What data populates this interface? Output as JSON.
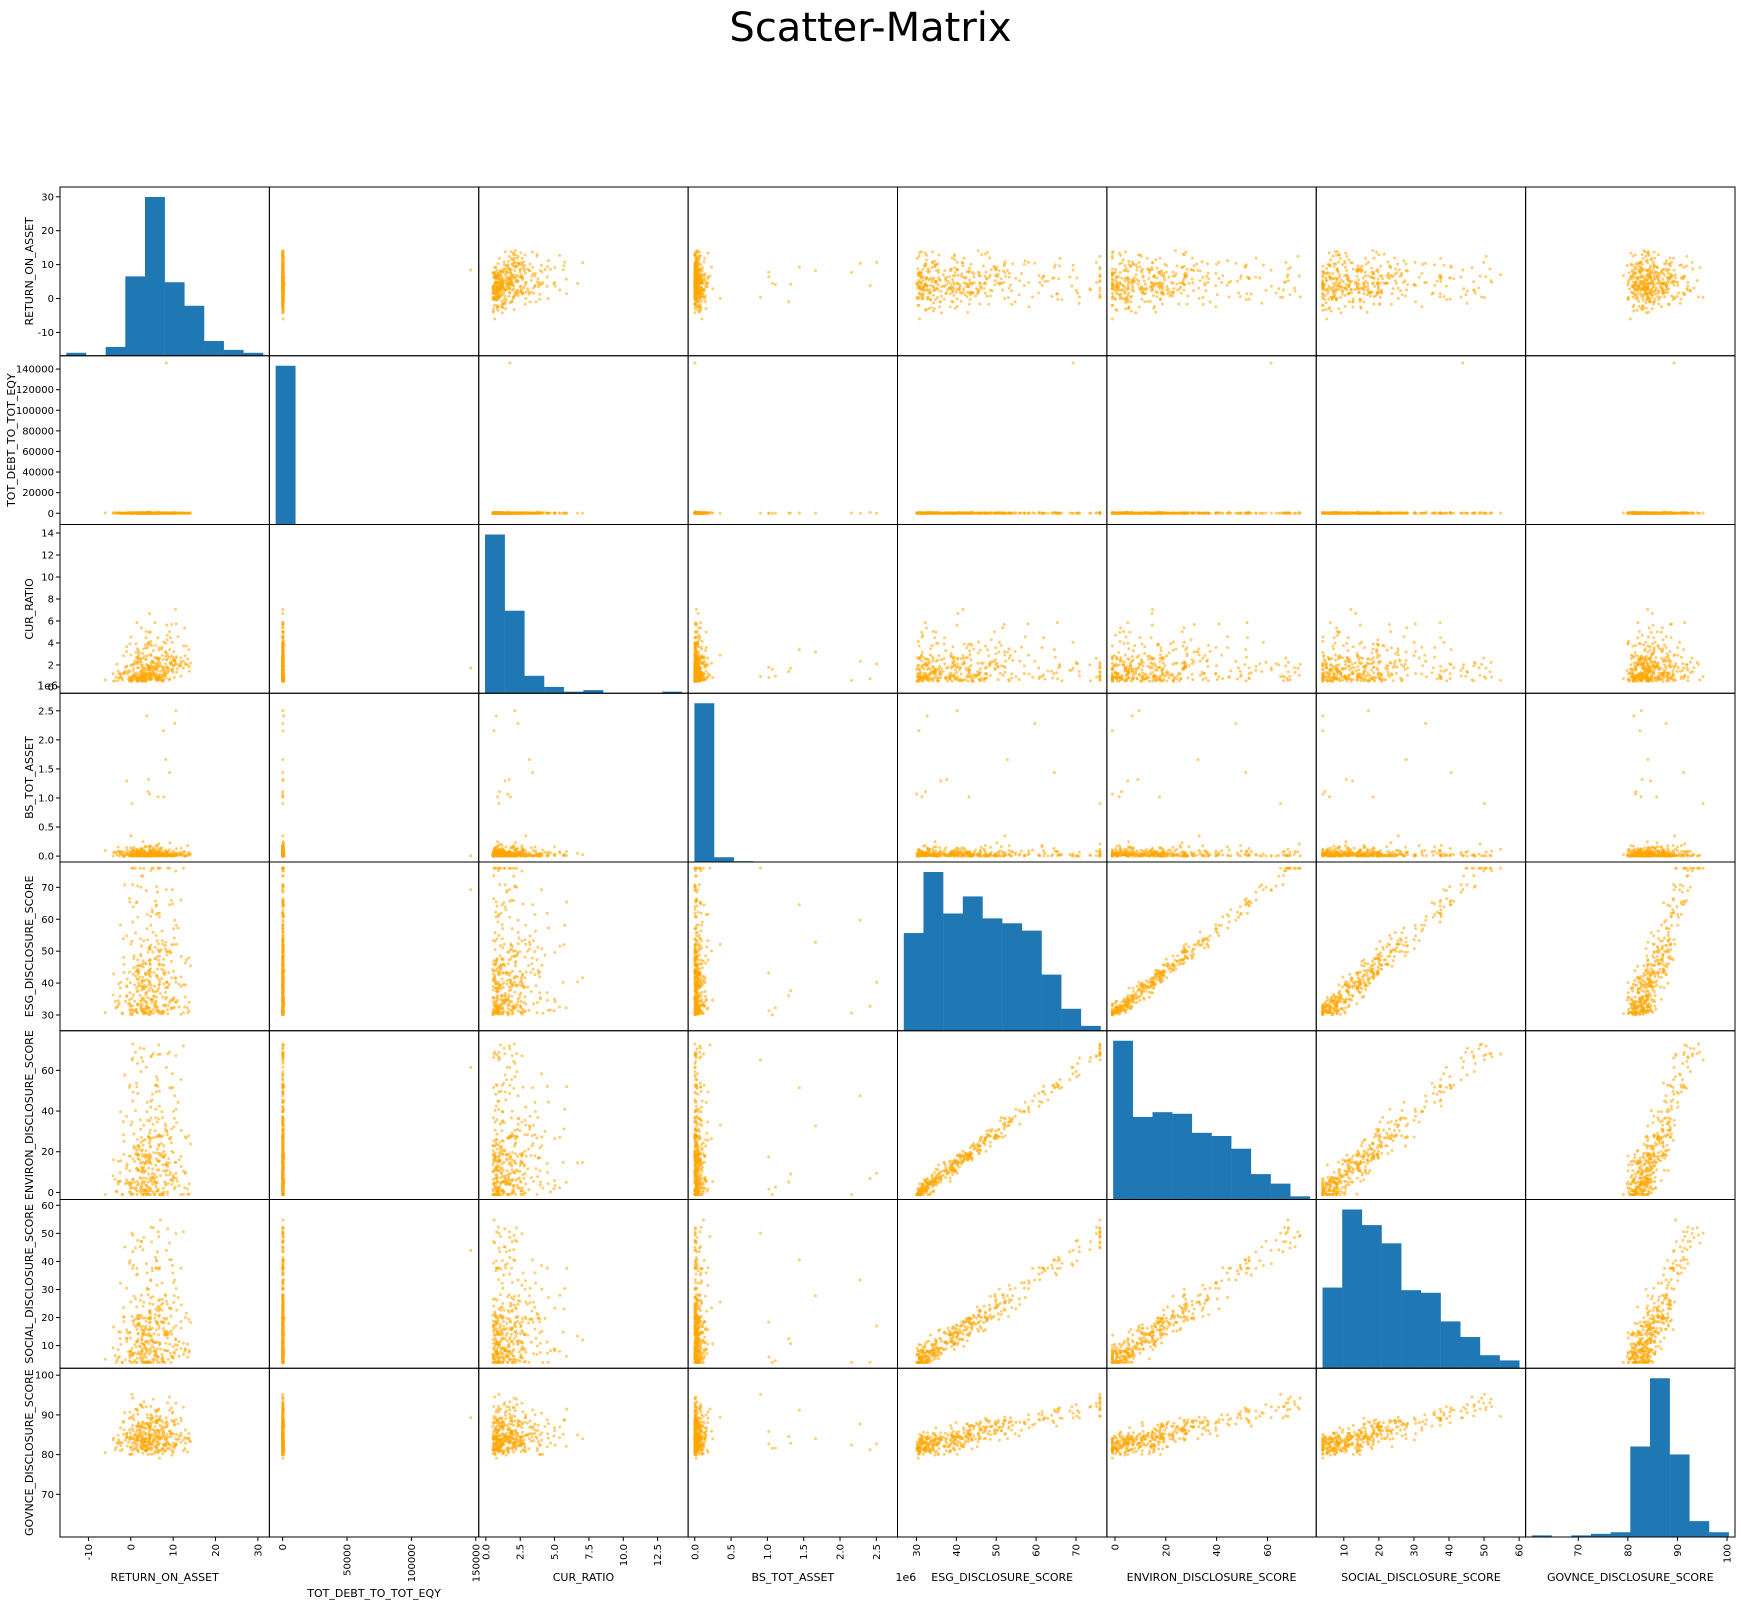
{
  "title": "Scatter-Matrix",
  "colors": {
    "scatter": "#FFA500",
    "hist": "#1f77b4",
    "axis": "#000000"
  },
  "chart_data": {
    "type": "scatter",
    "title": "Scatter-Matrix",
    "grid": false,
    "variables": [
      {
        "name": "RETURN_ON_ASSET",
        "range": [
          -16,
          32
        ],
        "ticks": [
          "-10",
          "0",
          "10",
          "20",
          "30"
        ],
        "tick_values": [
          -10,
          0,
          10,
          20,
          30
        ],
        "hist": [
          1,
          0,
          3,
          27,
          54,
          25,
          17,
          5,
          2,
          1
        ]
      },
      {
        "name": "TOT_DEBT_TO_TOT_EQY",
        "range": [
          -8000,
          150000
        ],
        "ticks": [
          "0",
          "20000",
          "40000",
          "60000",
          "80000",
          "100000",
          "120000",
          "140000"
        ],
        "tick_values": [
          0,
          20000,
          40000,
          60000,
          80000,
          100000,
          120000,
          140000
        ],
        "x_ticks": [
          "0",
          "50000",
          "100000",
          "150000"
        ],
        "x_tick_values": [
          0,
          50000,
          100000,
          150000
        ],
        "hist": [
          700,
          0,
          0,
          0,
          0,
          0,
          0,
          0,
          0,
          0
        ]
      },
      {
        "name": "CUR_RATIO",
        "range": [
          -0.3,
          14.5
        ],
        "ticks": [
          "0",
          "2",
          "4",
          "6",
          "8",
          "10",
          "12",
          "14"
        ],
        "tick_values": [
          0,
          2,
          4,
          6,
          8,
          10,
          12,
          14
        ],
        "x_ticks": [
          "0.0",
          "2.5",
          "5.0",
          "7.5",
          "10.0",
          "12.5"
        ],
        "x_tick_values": [
          0,
          2.5,
          5,
          7.5,
          10,
          12.5
        ],
        "hist": [
          100,
          52,
          11,
          4,
          1,
          2,
          0,
          0,
          0,
          1
        ]
      },
      {
        "name": "BS_TOT_ASSET",
        "range": [
          -0.05,
          2.75
        ],
        "offset_text": "1e6",
        "ticks": [
          "0.0",
          "0.5",
          "1.0",
          "1.5",
          "2.0",
          "2.5"
        ],
        "tick_values": [
          0,
          0.5,
          1,
          1.5,
          2,
          2.5
        ],
        "hist": [
          100,
          3,
          0.5,
          0.3,
          0,
          0,
          0.3,
          0.3,
          0.3,
          0.3
        ]
      },
      {
        "name": "ESG_DISCLOSURE_SCORE",
        "range": [
          26,
          77
        ],
        "ticks": [
          "30",
          "40",
          "50",
          "60",
          "70"
        ],
        "tick_values": [
          30,
          40,
          50,
          60,
          70
        ],
        "hist": [
          40,
          65,
          48,
          55,
          46,
          44,
          41,
          23,
          9,
          2
        ]
      },
      {
        "name": "ENVIRON_DISCLOSURE_SCORE",
        "range": [
          -2,
          78
        ],
        "ticks": [
          "0",
          "20",
          "40",
          "60"
        ],
        "tick_values": [
          0,
          20,
          40,
          60
        ],
        "hist": [
          100,
          52,
          55,
          54,
          42,
          40,
          32,
          16,
          10,
          2
        ]
      },
      {
        "name": "SOCIAL_DISCLOSURE_SCORE",
        "range": [
          3,
          61
        ],
        "ticks": [
          "10",
          "20",
          "30",
          "40",
          "50",
          "60"
        ],
        "tick_values": [
          10,
          20,
          30,
          40,
          50,
          60
        ],
        "hist": [
          31,
          61,
          55,
          48,
          30,
          29,
          18,
          12,
          5,
          3
        ]
      },
      {
        "name": "GOVNCE_DISCLOSURE_SCORE",
        "range": [
          60,
          101
        ],
        "ticks": [
          "70",
          "80",
          "90",
          "100"
        ],
        "tick_values": [
          70,
          80,
          90,
          100
        ],
        "hist": [
          1,
          0,
          1,
          2,
          3,
          57,
          100,
          52,
          10,
          3
        ]
      }
    ]
  }
}
